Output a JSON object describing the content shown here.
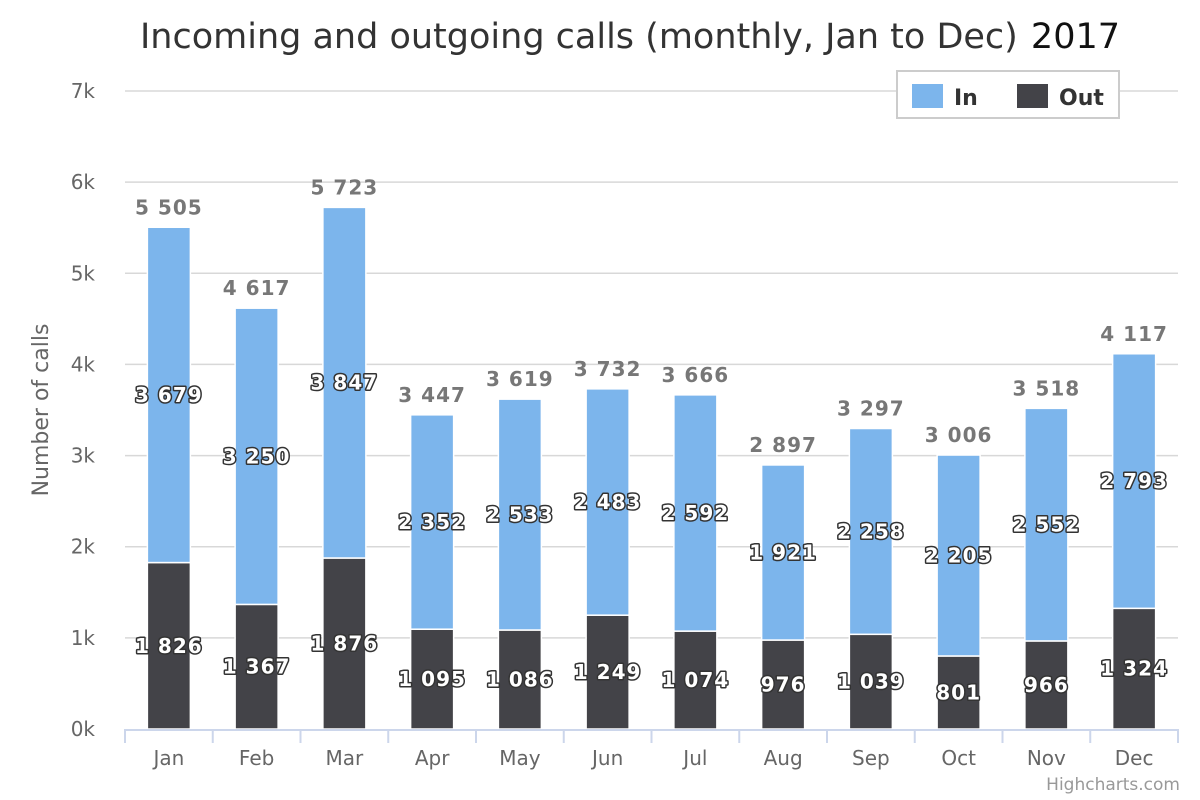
{
  "chart_data": {
    "type": "bar",
    "stacked": true,
    "title": "Incoming and outgoing calls (monthly, Jan to Dec)",
    "title_year": "2017",
    "xlabel": "",
    "ylabel": "Number of calls",
    "categories": [
      "Jan",
      "Feb",
      "Mar",
      "Apr",
      "May",
      "Jun",
      "Jul",
      "Aug",
      "Sep",
      "Oct",
      "Nov",
      "Dec"
    ],
    "ylim": [
      0,
      7000
    ],
    "y_ticks": [
      0,
      1000,
      2000,
      3000,
      4000,
      5000,
      6000,
      7000
    ],
    "y_tick_labels": [
      "0k",
      "1k",
      "2k",
      "3k",
      "4k",
      "5k",
      "6k",
      "7k"
    ],
    "series": [
      {
        "name": "In",
        "color": "#7cb5ec",
        "values": [
          3679,
          3250,
          3847,
          2352,
          2533,
          2483,
          2592,
          1921,
          2258,
          2205,
          2552,
          2793
        ],
        "labels": [
          "3 679",
          "3 250",
          "3 847",
          "2 352",
          "2 533",
          "2 483",
          "2 592",
          "1 921",
          "2 258",
          "2 205",
          "2 552",
          "2 793"
        ]
      },
      {
        "name": "Out",
        "color": "#434348",
        "values": [
          1826,
          1367,
          1876,
          1095,
          1086,
          1249,
          1074,
          976,
          1039,
          801,
          966,
          1324
        ],
        "labels": [
          "1 826",
          "1 367",
          "1 876",
          "1 095",
          "1 086",
          "1 249",
          "1 074",
          "976",
          "1 039",
          "801",
          "966",
          "1 324"
        ]
      }
    ],
    "totals": [
      5505,
      4617,
      5723,
      3447,
      3619,
      3732,
      3666,
      2897,
      3297,
      3006,
      3518,
      4117
    ],
    "total_labels": [
      "5 505",
      "4 617",
      "5 723",
      "3 447",
      "3 619",
      "3 732",
      "3 666",
      "2 897",
      "3 297",
      "3 006",
      "3 518",
      "4 117"
    ],
    "grid": true,
    "legend_position": "top-right"
  },
  "credits": "Highcharts.com"
}
